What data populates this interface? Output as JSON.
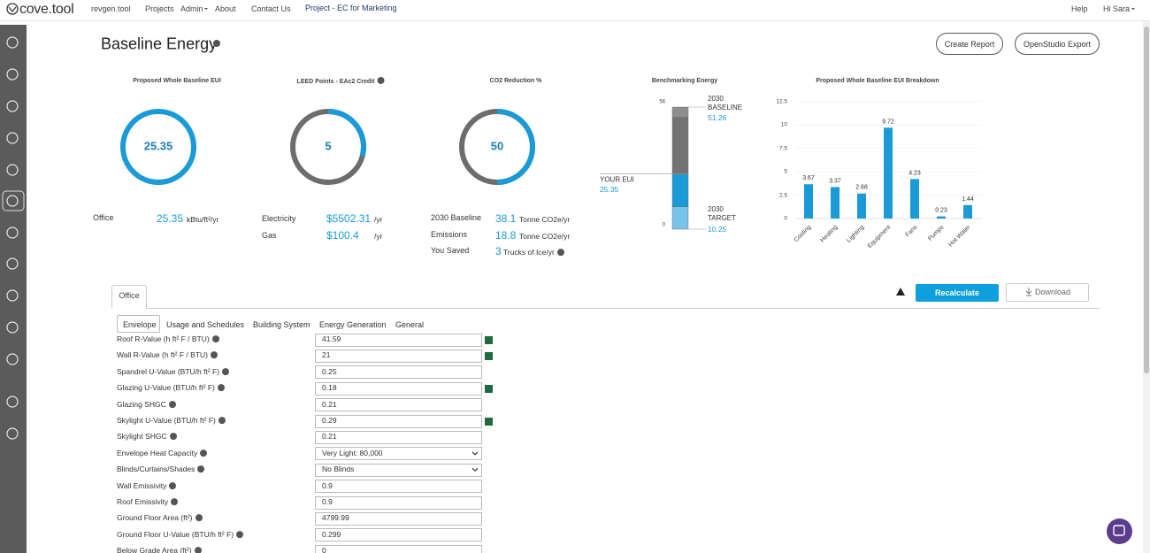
{
  "nav": {
    "brand": "cove.tool",
    "links": [
      "revgen.tool",
      "Projects",
      "Admin",
      "About",
      "Contact Us"
    ],
    "project": "Project - EC for Marketing",
    "help": "Help",
    "user": "Hi Sara"
  },
  "header": {
    "title": "Baseline Energy",
    "buttons": [
      "Create Report",
      "OpenStudio Export"
    ]
  },
  "eui": {
    "title": "Proposed Whole Baseline EUI",
    "value": 25.35,
    "row_label": "Office",
    "unit": "kBtu/ft²/yr"
  },
  "leed": {
    "title": "LEED Points - EAc2 Credit",
    "value": 5,
    "rows": [
      {
        "label": "Electricity",
        "value": "$5502.31",
        "unit": "/yr"
      },
      {
        "label": "Gas",
        "value": "$100.4",
        "unit": "/yr"
      }
    ]
  },
  "co2": {
    "title": "CO2 Reduction %",
    "value": 50,
    "rows": [
      {
        "label": "2030 Baseline",
        "value": 38.1,
        "unit": "Tonne CO2e/yr"
      },
      {
        "label": "Emissions",
        "value": 18.8,
        "unit": "Tonne CO2e/yr"
      },
      {
        "label": "You Saved",
        "value": 3,
        "unit": "Trucks of Ice/yr"
      }
    ]
  },
  "benchmark": {
    "title": "Benchmarking Energy",
    "ylim": [
      0,
      56
    ],
    "yticks": [
      0,
      56
    ],
    "baseline": {
      "label": "2030 BASELINE",
      "value": 51.26
    },
    "your_eui": {
      "label": "YOUR EUI",
      "value": 25.35
    },
    "target": {
      "label": "2030 TARGET",
      "value": 10.25
    }
  },
  "breakdown": {
    "type": "bar",
    "title": "Proposed Whole Baseline EUI Breakdown",
    "categories": [
      "Cooling",
      "Heating",
      "Lighting",
      "Equipment",
      "Fans",
      "Pumps",
      "Hot Water"
    ],
    "values": [
      3.67,
      3.37,
      2.68,
      9.72,
      4.23,
      0.23,
      1.44
    ],
    "color": "#1a9ad6",
    "ylim": [
      0,
      12.5
    ],
    "yticks": [
      0,
      2.5,
      5,
      7.5,
      10,
      12.5
    ],
    "grid": true
  },
  "form": {
    "tab": "Office",
    "recalculate": "Recalculate",
    "download": "Download",
    "subtabs": [
      "Envelope",
      "Usage and Schedules",
      "Building System",
      "Energy Generation",
      "General"
    ],
    "fields": [
      {
        "label": "Roof R-Value (h ft² F / BTU)",
        "value": "41.59",
        "select": false,
        "flag": true
      },
      {
        "label": "Wall R-Value (h ft² F / BTU)",
        "value": "21",
        "select": false,
        "flag": true
      },
      {
        "label": "Spandrel U-Value (BTU/h ft² F)",
        "value": "0.25",
        "select": false,
        "flag": false
      },
      {
        "label": "Glazing U-Value (BTU/h ft² F)",
        "value": "0.18",
        "select": false,
        "flag": true
      },
      {
        "label": "Glazing SHGC",
        "value": "0.21",
        "select": false,
        "flag": false
      },
      {
        "label": "Skylight U-Value (BTU/h ft² F)",
        "value": "0.29",
        "select": false,
        "flag": true
      },
      {
        "label": "Skylight SHGC",
        "value": "0.21",
        "select": false,
        "flag": false
      },
      {
        "label": "Envelope Heat Capacity",
        "value": "Very Light: 80,000",
        "select": true,
        "flag": false
      },
      {
        "label": "Blinds/Curtains/Shades",
        "value": "No Blinds",
        "select": true,
        "flag": false
      },
      {
        "label": "Wall Emissivity",
        "value": "0.9",
        "select": false,
        "flag": false
      },
      {
        "label": "Roof Emissivity",
        "value": "0.9",
        "select": false,
        "flag": false
      },
      {
        "label": "Ground Floor Area (ft²)",
        "value": "4799.99",
        "select": false,
        "flag": false
      },
      {
        "label": "Ground Floor U-Value (BTU/h ft² F)",
        "value": "0.299",
        "select": false,
        "flag": false
      },
      {
        "label": "Below Grade Area (ft²)",
        "value": "0",
        "select": false,
        "flag": false
      }
    ]
  }
}
